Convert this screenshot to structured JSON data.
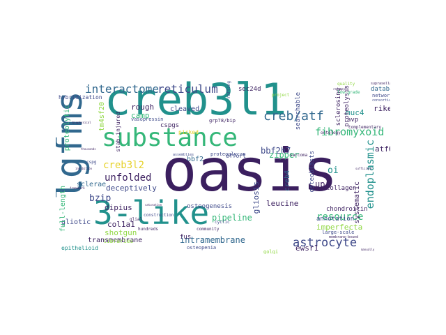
{
  "palette": {
    "dark_purple": "#3b1f5f",
    "indigo": "#3f4a8a",
    "blue": "#31688e",
    "teal": "#21918c",
    "green": "#35b779",
    "lime": "#90d743",
    "yellow": "#e6d22b"
  },
  "words": [
    {
      "text": "creb3l1"
    },
    {
      "text": "oasis"
    },
    {
      "text": "lgfms"
    },
    {
      "text": "3-like"
    },
    {
      "text": "substance"
    },
    {
      "text": "creb/atf"
    },
    {
      "text": "fibromyxoid"
    },
    {
      "text": "astrocyte"
    },
    {
      "text": "interactome"
    },
    {
      "text": "reticulum"
    },
    {
      "text": "creb3l2"
    },
    {
      "text": "unfolded"
    },
    {
      "text": "bzip"
    },
    {
      "text": "deceptively"
    },
    {
      "text": "bbf2h7"
    },
    {
      "text": "endoplasmic"
    },
    {
      "text": "resource"
    },
    {
      "text": "zipper"
    },
    {
      "text": "oi"
    },
    {
      "text": "upr"
    },
    {
      "text": "bbf2"
    },
    {
      "text": "muc4"
    },
    {
      "text": "atf6"
    },
    {
      "text": "riken"
    },
    {
      "text": "database"
    },
    {
      "text": "rough"
    },
    {
      "text": "camp"
    },
    {
      "text": "cleaved"
    },
    {
      "text": "dipius"
    },
    {
      "text": "col1a1"
    },
    {
      "text": "osteogenesis"
    },
    {
      "text": "pipeline"
    },
    {
      "text": "gliosis"
    },
    {
      "text": "leucine"
    },
    {
      "text": "intramembrane"
    },
    {
      "text": "transmembrane"
    },
    {
      "text": "imperfecta"
    },
    {
      "text": "annotation"
    },
    {
      "text": "ewsr1"
    },
    {
      "text": "shotgun"
    },
    {
      "text": "gliotic"
    },
    {
      "text": "sclerae"
    },
    {
      "text": "full-length"
    },
    {
      "text": "proteolytic"
    },
    {
      "text": "tm4sf20"
    },
    {
      "text": "creb4"
    },
    {
      "text": "systematic"
    },
    {
      "text": "chondroitin"
    },
    {
      "text": "collagen"
    },
    {
      "text": "osteoblasts"
    },
    {
      "text": "sclerosing"
    },
    {
      "text": "proteolysis"
    },
    {
      "text": "searchable"
    },
    {
      "text": "sec24d"
    },
    {
      "text": "effort"
    },
    {
      "text": "avp"
    },
    {
      "text": "cspgs"
    },
    {
      "text": "picked"
    },
    {
      "text": "stab-injured"
    },
    {
      "text": "hybridization"
    },
    {
      "text": "libraries"
    },
    {
      "text": "fus"
    },
    {
      "text": "epithelioid"
    },
    {
      "text": "vasopressin"
    },
    {
      "text": "grp78/bip"
    },
    {
      "text": "proteoglycan"
    },
    {
      "text": "osteopenia"
    },
    {
      "text": "hundreds"
    },
    {
      "text": "construction"
    },
    {
      "text": "cyclic"
    },
    {
      "text": "community"
    },
    {
      "text": "golgi"
    },
    {
      "text": "large-scale"
    },
    {
      "text": "membrane-bound"
    },
    {
      "text": "quality"
    },
    {
      "text": "project"
    },
    {
      "text": "networks"
    },
    {
      "text": "ontology"
    },
    {
      "text": "complementary"
    },
    {
      "text": "consortium"
    },
    {
      "text": "low-grade"
    },
    {
      "text": "suprasellar"
    },
    {
      "text": "rafting"
    },
    {
      "text": "sarcoma"
    },
    {
      "text": "glial"
    },
    {
      "text": "cspg"
    },
    {
      "text": "biophysical"
    },
    {
      "text": "reference"
    },
    {
      "text": "thousands"
    },
    {
      "text": "inhibition"
    },
    {
      "text": "framework"
    },
    {
      "text": "assemblies"
    },
    {
      "text": "saturation"
    },
    {
      "text": "sufficient"
    },
    {
      "text": "manually"
    }
  ]
}
